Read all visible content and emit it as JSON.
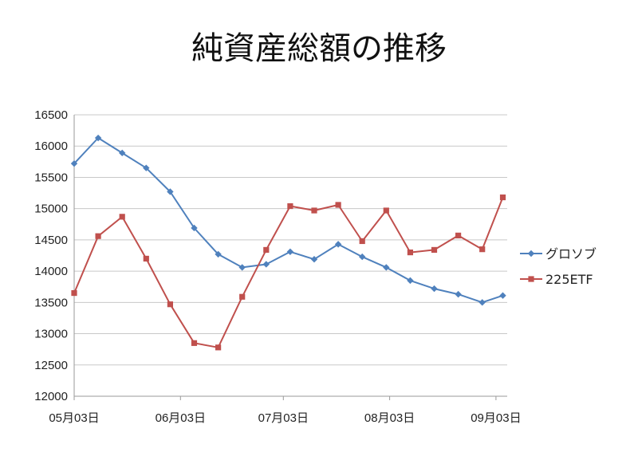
{
  "chart_data": {
    "type": "line",
    "title": "純資産総額の推移",
    "xlabel": "",
    "ylabel": "",
    "ylim": [
      12000,
      16500
    ],
    "y_ticks": [
      "12000",
      "12500",
      "13000",
      "13500",
      "14000",
      "14500",
      "15000",
      "15500",
      "16000",
      "16500"
    ],
    "x_tick_labels": [
      "05月03日",
      "06月03日",
      "07月03日",
      "08月03日",
      "09月03日"
    ],
    "x_tick_dates": [
      "05-03",
      "06-03",
      "07-03",
      "08-03",
      "09-03"
    ],
    "x": [
      "05-03",
      "05-10",
      "05-17",
      "05-24",
      "05-31",
      "06-07",
      "06-14",
      "06-21",
      "06-28",
      "07-05",
      "07-12",
      "07-19",
      "07-26",
      "08-02",
      "08-09",
      "08-16",
      "08-23",
      "08-30",
      "09-05"
    ],
    "grid": "horizontal",
    "legend_position": "right",
    "series": [
      {
        "name": "グロソブ",
        "color": "#4F81BD",
        "marker": "diamond",
        "values": [
          15720,
          16130,
          15890,
          15650,
          15270,
          14690,
          14270,
          14060,
          14110,
          14310,
          14190,
          14430,
          14230,
          14060,
          13850,
          13720,
          13630,
          13500,
          13610
        ]
      },
      {
        "name": "225ETF",
        "color": "#C0504D",
        "marker": "square",
        "values": [
          13650,
          14560,
          14870,
          14200,
          13470,
          12850,
          12780,
          13590,
          14340,
          15040,
          14970,
          15060,
          14480,
          14970,
          14300,
          14340,
          14570,
          14350,
          15180
        ]
      }
    ]
  }
}
